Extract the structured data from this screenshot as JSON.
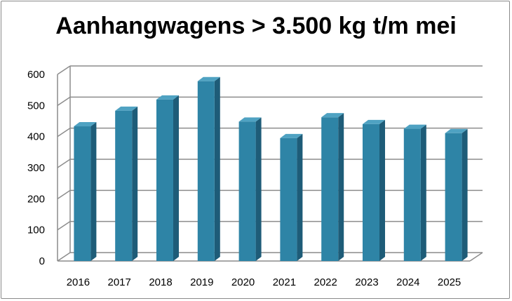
{
  "chart_data": {
    "type": "bar",
    "title": "Aanhangwagens > 3.500 kg t/m mei",
    "categories": [
      "2016",
      "2017",
      "2018",
      "2019",
      "2020",
      "2021",
      "2022",
      "2023",
      "2024",
      "2025"
    ],
    "values": [
      433,
      483,
      519,
      578,
      448,
      395,
      462,
      440,
      425,
      411
    ],
    "xlabel": "",
    "ylabel": "",
    "ylim": [
      0,
      600
    ],
    "yticks": [
      0,
      100,
      200,
      300,
      400,
      500,
      600
    ],
    "grid": true,
    "legend": "none",
    "style": "3d",
    "colors": {
      "bar_front": "#2E84A6",
      "bar_side": "#1E5C78",
      "bar_top": "#4FA2C2",
      "grid": "#8c8c8c"
    }
  }
}
